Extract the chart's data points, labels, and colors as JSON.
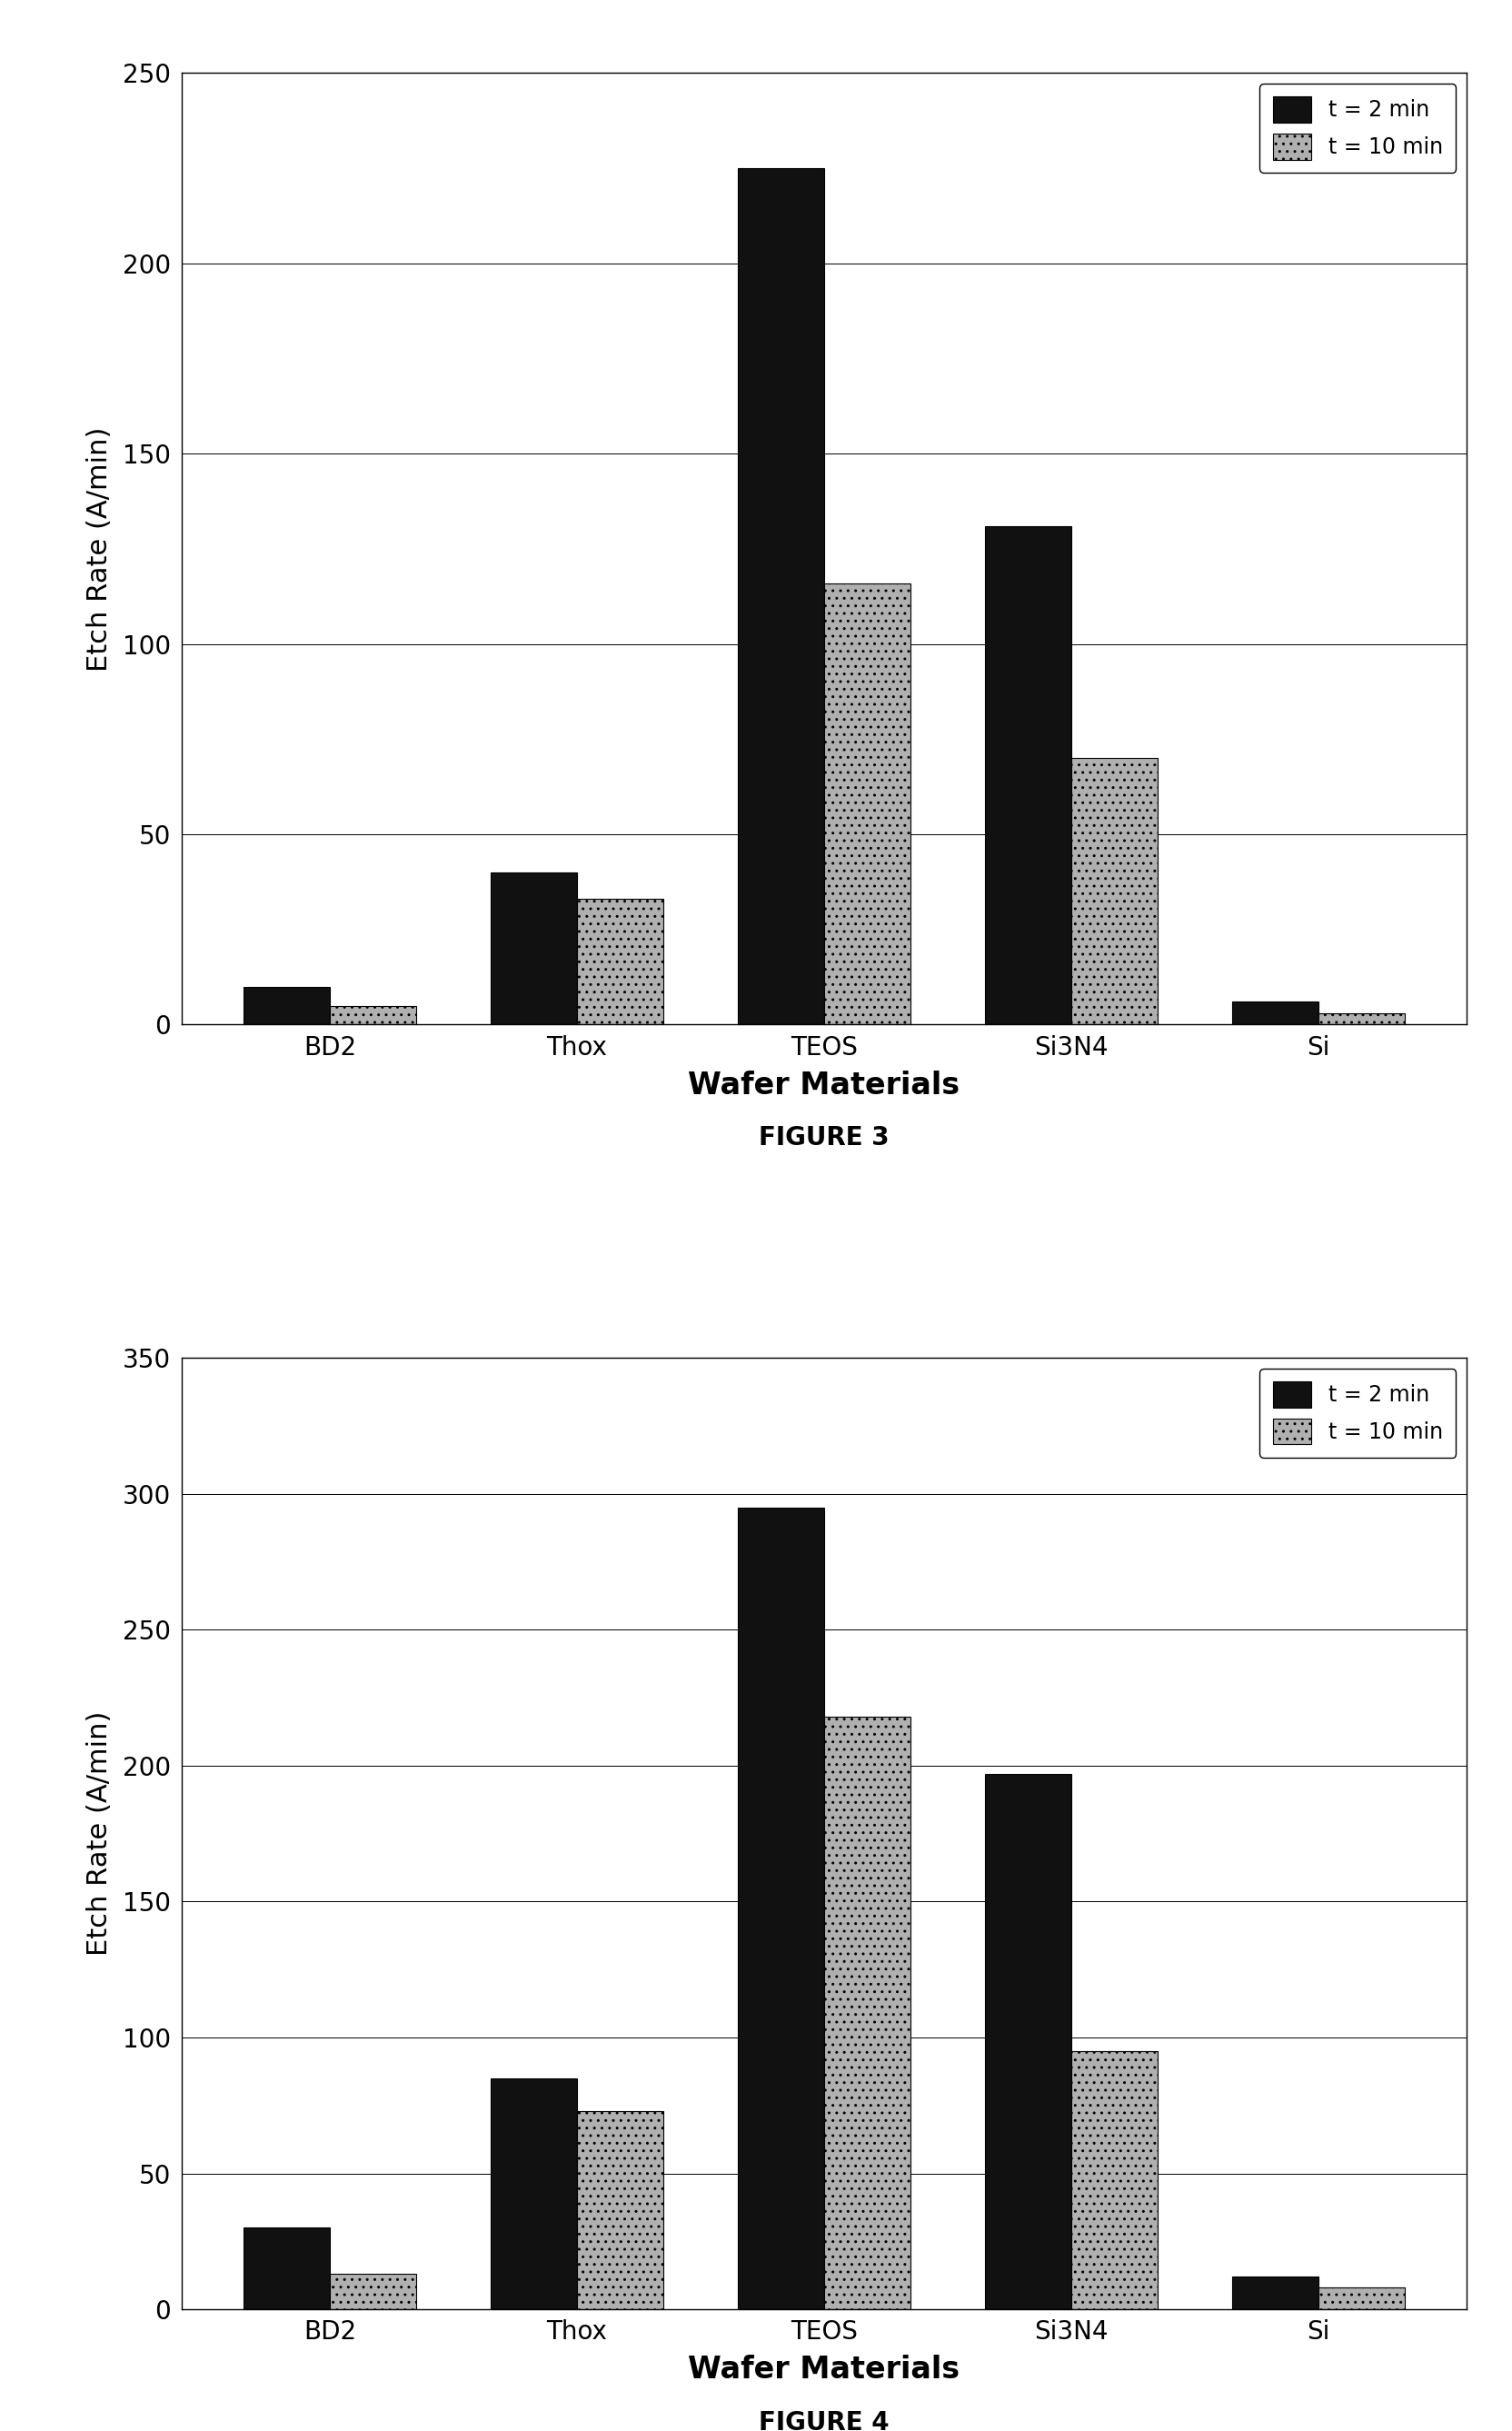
{
  "fig3": {
    "categories": [
      "BD2",
      "Thox",
      "TEOS",
      "Si3N4",
      "Si"
    ],
    "t2min": [
      10,
      40,
      225,
      131,
      6
    ],
    "t10min": [
      5,
      33,
      116,
      70,
      3
    ],
    "ylabel": "Etch Rate (A/min)",
    "xlabel": "Wafer Materials",
    "title": "FIGURE 3",
    "ylim": [
      0,
      250
    ],
    "yticks": [
      0,
      50,
      100,
      150,
      200,
      250
    ],
    "legend_t2": "t = 2 min",
    "legend_t10": "t = 10 min"
  },
  "fig4": {
    "categories": [
      "BD2",
      "Thox",
      "TEOS",
      "Si3N4",
      "Si"
    ],
    "t2min": [
      30,
      85,
      295,
      197,
      12
    ],
    "t10min": [
      13,
      73,
      218,
      95,
      8
    ],
    "ylabel": "Etch Rate (A/min)",
    "xlabel": "Wafer Materials",
    "title": "FIGURE 4",
    "ylim": [
      0,
      350
    ],
    "yticks": [
      0,
      50,
      100,
      150,
      200,
      250,
      300,
      350
    ],
    "legend_t2": "t = 2 min",
    "legend_t10": "t = 10 min"
  },
  "bar_width": 0.35,
  "color_t2": "#111111",
  "color_t10": "#b0b0b0",
  "background_color": "#ffffff",
  "fig_facecolor": "#ffffff"
}
